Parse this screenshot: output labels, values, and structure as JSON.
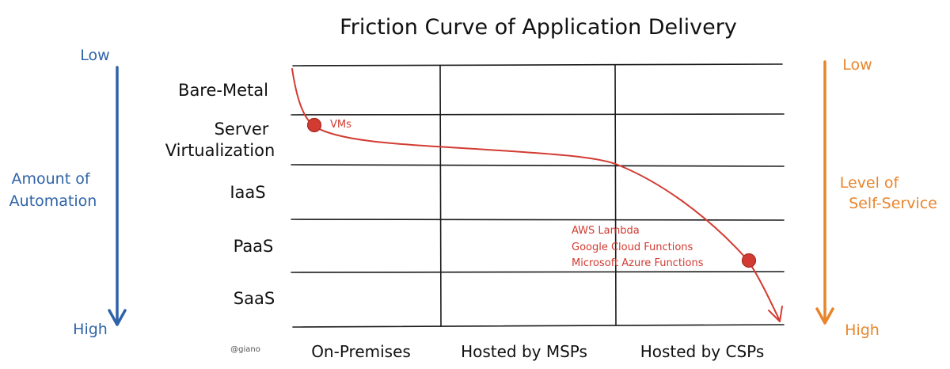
{
  "title": "Friction Curve of Application Delivery",
  "left_axis": {
    "top": "Low",
    "bottom": "High",
    "label": [
      "Amount of",
      "Automation"
    ],
    "color": "#2f63a8"
  },
  "right_axis": {
    "top": "Low",
    "bottom": "High",
    "label": [
      "Level of",
      "Self-Service"
    ],
    "color": "#e8852c"
  },
  "rows": [
    {
      "lines": [
        "Bare-Metal"
      ]
    },
    {
      "lines": [
        "Server",
        "Virtualization"
      ]
    },
    {
      "lines": [
        "IaaS"
      ]
    },
    {
      "lines": [
        "PaaS"
      ]
    },
    {
      "lines": [
        "SaaS"
      ]
    }
  ],
  "columns": [
    "On-Premises",
    "Hosted by MSPs",
    "Hosted by CSPs"
  ],
  "annotations": {
    "vms": [
      "VMs"
    ],
    "serverless": [
      "AWS Lambda",
      "Google Cloud Functions",
      "Microsoft Azure Functions"
    ]
  },
  "curve_color": "#d23b32",
  "credit": "@giano"
}
